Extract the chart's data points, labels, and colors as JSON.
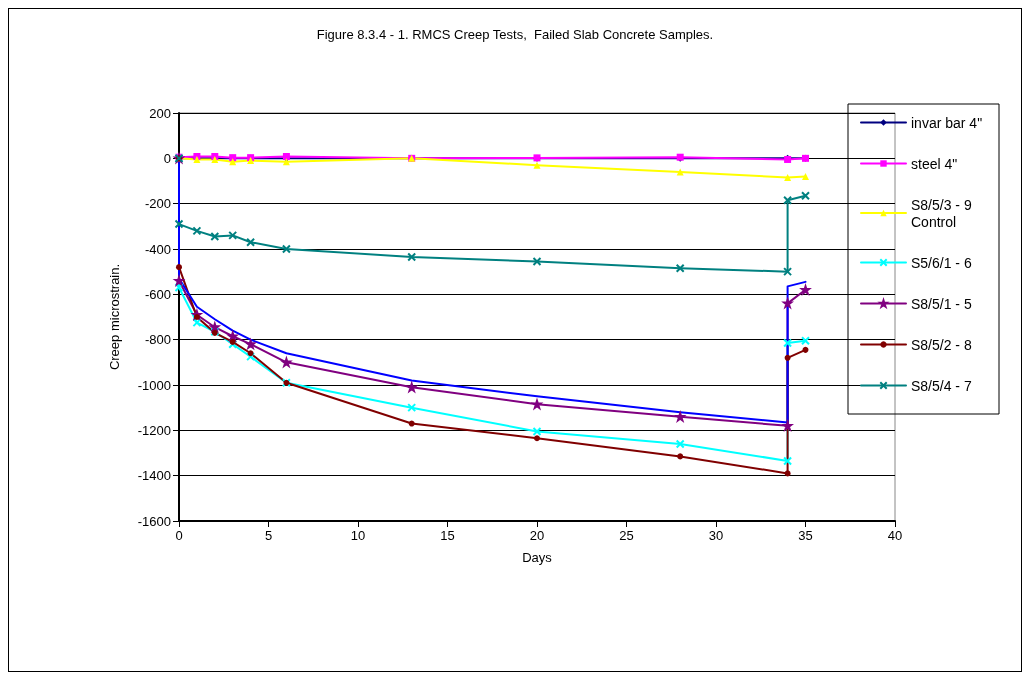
{
  "chart_data": {
    "type": "line",
    "title": "Figure 8.3.4 - 1. RMCS Creep Tests,  Failed Slab Concrete Samples.",
    "xlabel": "Days",
    "ylabel": "Creep microstrain.",
    "xlim": [
      0,
      40
    ],
    "xticks": [
      0,
      5,
      10,
      15,
      20,
      25,
      30,
      35,
      40
    ],
    "ylim": [
      -1600,
      200
    ],
    "yticks": [
      -1600,
      -1400,
      -1200,
      -1000,
      -800,
      -600,
      -400,
      -200,
      0,
      200
    ],
    "grid": "y",
    "legend": "right",
    "line_style": "solid",
    "x": [
      0,
      1,
      2,
      3,
      4,
      6,
      13,
      20,
      28,
      34,
      35
    ],
    "series": [
      {
        "name": "invar bar 4\"",
        "color": "#000080",
        "marker": "diamond",
        "values": [
          0,
          0,
          0,
          0,
          0,
          0,
          0,
          0,
          0,
          0,
          0
        ]
      },
      {
        "name": "steel 4\"",
        "color": "#ff00ff",
        "marker": "square",
        "values": [
          5,
          8,
          8,
          3,
          3,
          8,
          0,
          2,
          5,
          -5,
          0
        ]
      },
      {
        "name": "S8/5/3 - 9 Control",
        "color": "#ffff00",
        "marker": "triangle",
        "values": [
          0,
          -5,
          -5,
          -15,
          -10,
          -15,
          0,
          -30,
          -60,
          -85,
          -80
        ]
      },
      {
        "name": "S5/6/1 - 6",
        "color": "#00ffff",
        "marker": "cross",
        "x": [
          0,
          0,
          1,
          2,
          3,
          4,
          6,
          13,
          20,
          28,
          34,
          34,
          35
        ],
        "values": [
          0,
          -570,
          -725,
          -765,
          -820,
          -875,
          -990,
          -1100,
          -1205,
          -1260,
          -1335,
          -815,
          -805
        ]
      },
      {
        "name": "S8/5/1 - 5",
        "color": "#800080",
        "marker": "star",
        "x": [
          0,
          0,
          1,
          2,
          3,
          4,
          6,
          13,
          20,
          28,
          34,
          34,
          35
        ],
        "values": [
          0,
          -540,
          -690,
          -745,
          -785,
          -820,
          -900,
          -1010,
          -1085,
          -1140,
          -1180,
          -640,
          -580
        ]
      },
      {
        "name": "S8/5/2 - 8",
        "color": "#800000",
        "marker": "circle",
        "x": [
          0,
          0,
          1,
          2,
          3,
          4,
          6,
          13,
          20,
          28,
          34,
          34,
          35
        ],
        "values": [
          0,
          -480,
          -700,
          -770,
          -810,
          -860,
          -990,
          -1170,
          -1235,
          -1315,
          -1390,
          -880,
          -845
        ]
      },
      {
        "name": "S8/5/4 - 7",
        "color": "#008080",
        "marker": "cross",
        "x": [
          0,
          0,
          1,
          2,
          3,
          4,
          6,
          13,
          20,
          28,
          34,
          34,
          35
        ],
        "values": [
          0,
          -290,
          -320,
          -345,
          -340,
          -370,
          -400,
          -435,
          -455,
          -485,
          -500,
          -185,
          -165
        ]
      },
      {
        "color": "#0000ff",
        "marker": "none",
        "x": [
          0,
          0,
          1,
          2,
          3,
          4,
          6,
          13,
          20,
          28,
          34,
          34,
          35
        ],
        "values": [
          0,
          -530,
          -655,
          -710,
          -760,
          -800,
          -860,
          -980,
          -1050,
          -1120,
          -1165,
          -565,
          -545
        ]
      }
    ]
  }
}
